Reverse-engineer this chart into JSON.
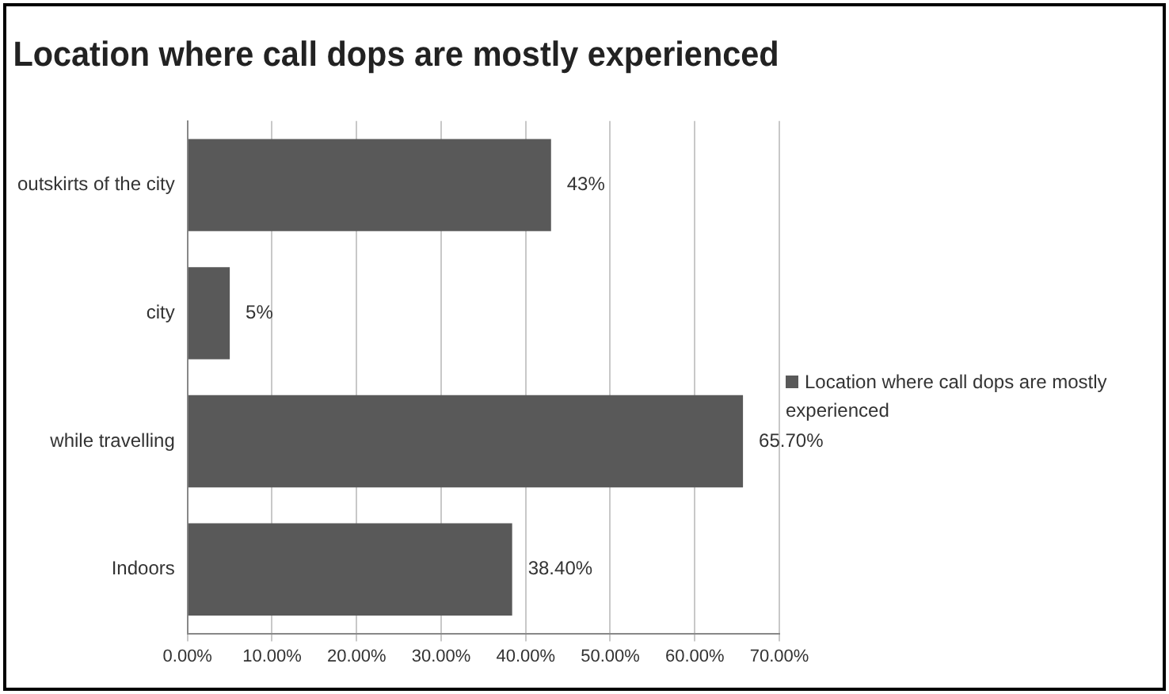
{
  "chart_data": {
    "type": "bar",
    "orientation": "horizontal",
    "title": "Location where call dops are mostly experienced",
    "categories": [
      "outskirts of the city",
      "city",
      "while travelling",
      "Indoors"
    ],
    "series": [
      {
        "name": "Location where call dops are mostly experienced",
        "color": "#595959",
        "values": [
          43,
          5,
          65.7,
          38.4
        ],
        "value_labels": [
          "43%",
          "5%",
          "65.70%",
          "38.40%"
        ]
      }
    ],
    "xlim": [
      0,
      70
    ],
    "xticks": [
      {
        "value": 0,
        "label": "0.00%"
      },
      {
        "value": 10,
        "label": "10.00%"
      },
      {
        "value": 20,
        "label": "20.00%"
      },
      {
        "value": 30,
        "label": "30.00%"
      },
      {
        "value": 40,
        "label": "40.00%"
      },
      {
        "value": 50,
        "label": "50.00%"
      },
      {
        "value": 60,
        "label": "60.00%"
      },
      {
        "value": 70,
        "label": "70.00%"
      }
    ],
    "grid": "x",
    "legend": "right"
  }
}
